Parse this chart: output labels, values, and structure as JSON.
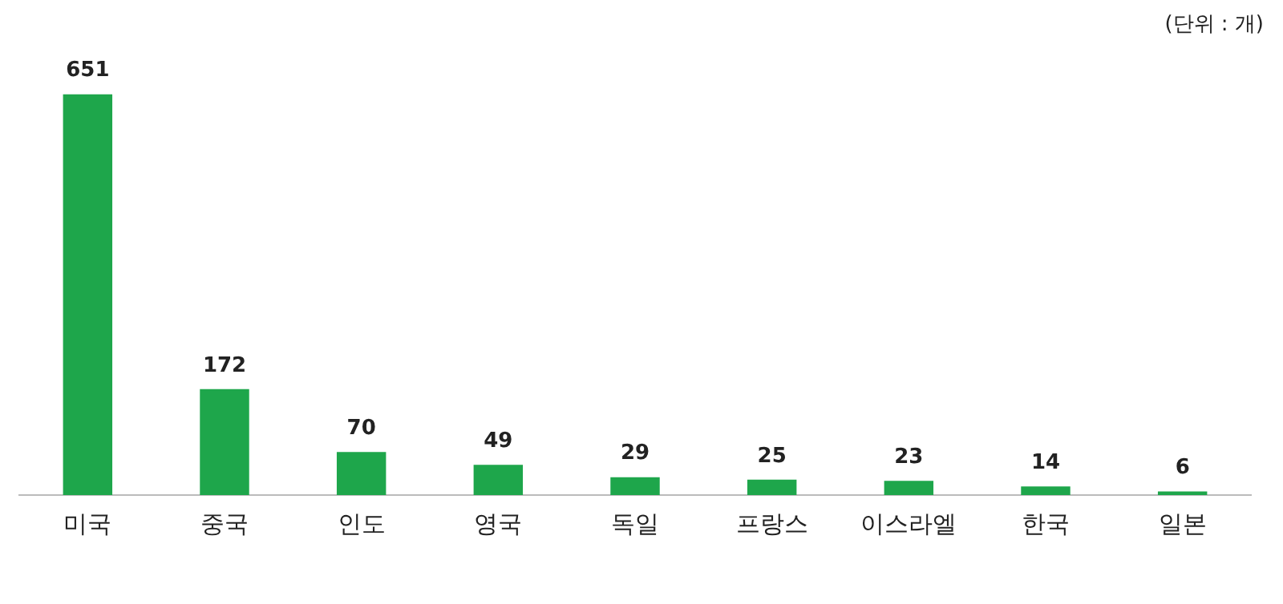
{
  "chart_data": {
    "type": "bar",
    "categories": [
      "미국",
      "중국",
      "인도",
      "영국",
      "독일",
      "프랑스",
      "이스라엘",
      "한국",
      "일본"
    ],
    "values": [
      651,
      172,
      70,
      49,
      29,
      25,
      23,
      14,
      6
    ],
    "color": "#1ea64b",
    "data_labels": true,
    "grid": false,
    "legend": false,
    "annotations": [
      "(단위 : 개)"
    ]
  }
}
